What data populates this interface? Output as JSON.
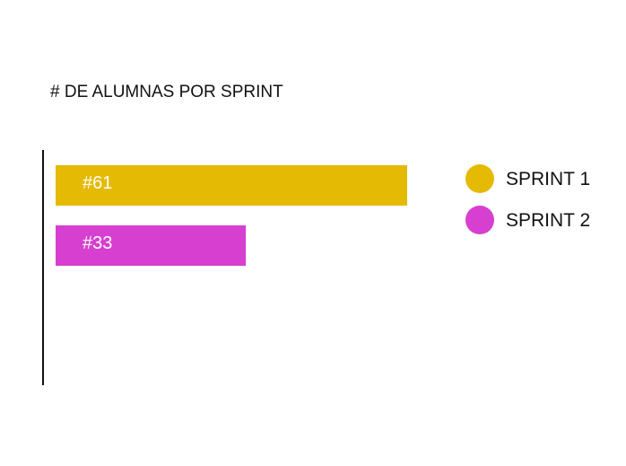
{
  "chart_data": {
    "type": "bar",
    "orientation": "horizontal",
    "title": "# DE ALUMNAS POR SPRINT",
    "categories": [
      "SPRINT 1",
      "SPRINT 2"
    ],
    "values": [
      61,
      33
    ],
    "data_labels": [
      "#61",
      "#33"
    ],
    "colors": [
      "#E5BA04",
      "#D63FD0"
    ],
    "xlim": [
      0,
      61
    ],
    "xlabel": "",
    "ylabel": "",
    "grid": false,
    "legend": {
      "position": "right",
      "entries": [
        "SPRINT 1",
        "SPRINT 2"
      ]
    }
  }
}
